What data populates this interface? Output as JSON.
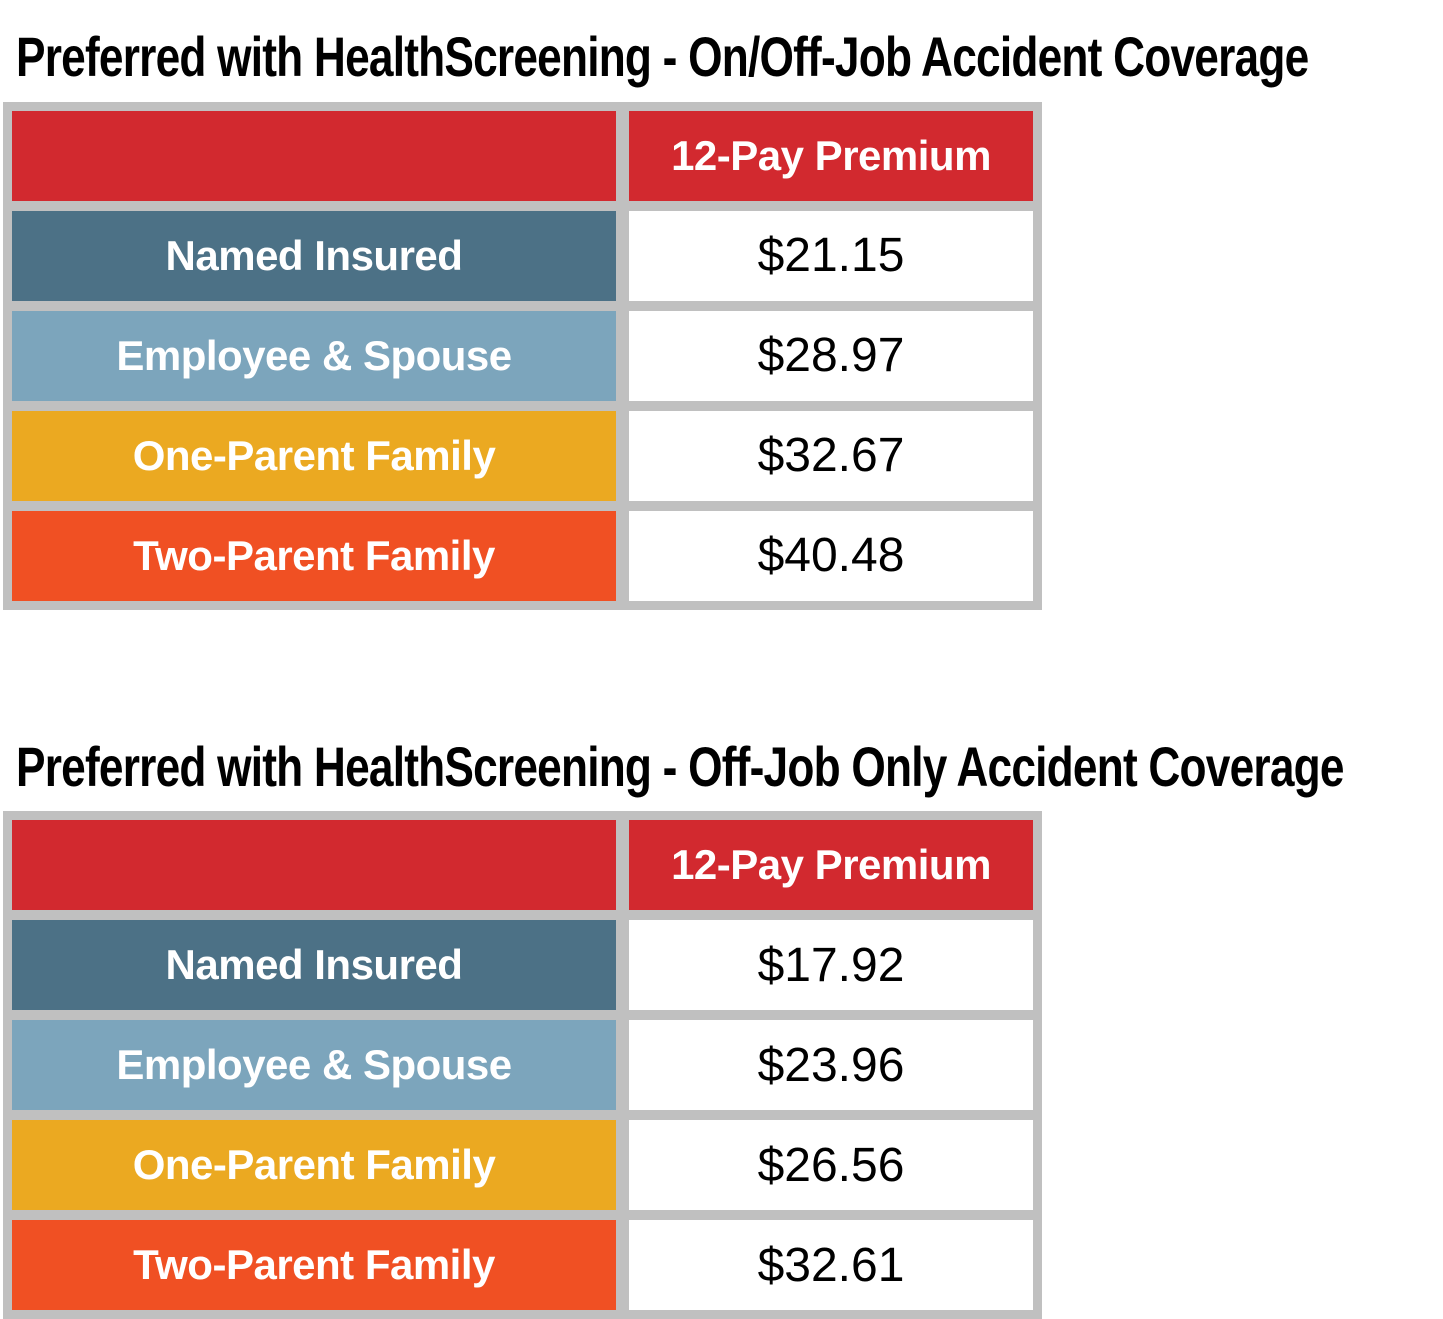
{
  "colors": {
    "header_red": "#D2292F",
    "row_named_insured": "#4C7186",
    "row_employee_spouse": "#7CA5BC",
    "row_one_parent": "#EBA921",
    "row_two_parent": "#F05023",
    "table_grid_gray": "#C0C0C0",
    "value_cell_bg": "#FFFFFF",
    "title_text": "#000000"
  },
  "tables": [
    {
      "title": "Preferred with HealthScreening - On/Off-Job Accident Coverage",
      "column_header": "12-Pay Premium",
      "rows": [
        {
          "label": "Named Insured",
          "premium": "$21.15"
        },
        {
          "label": "Employee & Spouse",
          "premium": "$28.97"
        },
        {
          "label": "One-Parent Family",
          "premium": "$32.67"
        },
        {
          "label": "Two-Parent Family",
          "premium": "$40.48"
        }
      ]
    },
    {
      "title": "Preferred with HealthScreening - Off-Job Only Accident Coverage",
      "column_header": "12-Pay Premium",
      "rows": [
        {
          "label": "Named Insured",
          "premium": "$17.92"
        },
        {
          "label": "Employee & Spouse",
          "premium": "$23.96"
        },
        {
          "label": "One-Parent Family",
          "premium": "$26.56"
        },
        {
          "label": "Two-Parent Family",
          "premium": "$32.61"
        }
      ]
    }
  ]
}
